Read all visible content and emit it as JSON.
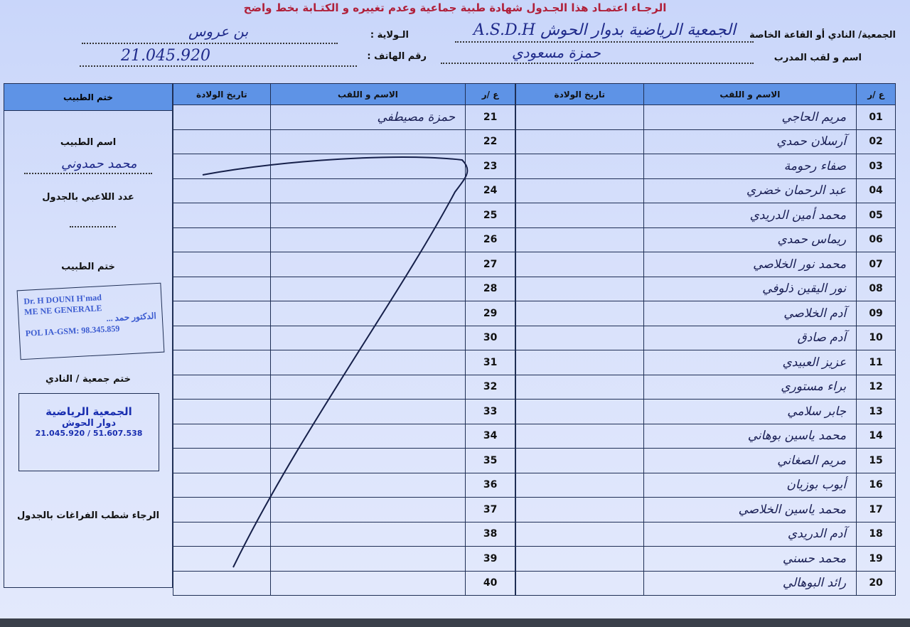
{
  "title": {
    "line1": "الرجـاء اعتمـاد هذا الجـدول  شهادة طبية جماعية وعدم تغييره و الكتـابة بخط واضح",
    "line2": ""
  },
  "header": {
    "club_label": "الجمعية/ النادي أو القاعة الخاصة",
    "club_value": "الجمعية الرياضية بدوار الحوش A.S.D.H",
    "wilaya_label": "الـولاية :",
    "wilaya_value": "بن عروس",
    "coach_label": "اسم و لقب المدرب",
    "coach_value": "حمزة مسعودي",
    "phone_label": "رقم الهاتف :",
    "phone_value": "21.045.920"
  },
  "table": {
    "col_number": "ع /ر",
    "col_name": "الاسم و اللقب",
    "col_birth": "تاريخ الولادة",
    "right_rows": [
      {
        "n": "01",
        "name": "مريم الحاجي"
      },
      {
        "n": "02",
        "name": "آرسلان حمدي"
      },
      {
        "n": "03",
        "name": "صفاء رحومة"
      },
      {
        "n": "04",
        "name": "عبد الرحمان خضري"
      },
      {
        "n": "05",
        "name": "محمد أمين الدريدي"
      },
      {
        "n": "06",
        "name": "ريماس حمدي"
      },
      {
        "n": "07",
        "name": "محمد نور الخلاصي"
      },
      {
        "n": "08",
        "name": "نور اليقين ذلوفي"
      },
      {
        "n": "09",
        "name": "آدم الخلاصي"
      },
      {
        "n": "10",
        "name": "آدم صادق"
      },
      {
        "n": "11",
        "name": "عزيز العبيدي"
      },
      {
        "n": "12",
        "name": "براء مستوري"
      },
      {
        "n": "13",
        "name": "جابر سلامي"
      },
      {
        "n": "14",
        "name": "محمد ياسين بوهاني"
      },
      {
        "n": "15",
        "name": "مريم الصغاني"
      },
      {
        "n": "16",
        "name": "أيوب بوزيان"
      },
      {
        "n": "17",
        "name": "محمد ياسين الخلاصي"
      },
      {
        "n": "18",
        "name": "آدم الدريدي"
      },
      {
        "n": "19",
        "name": "محمد حسني"
      },
      {
        "n": "20",
        "name": "رائد البوهالي"
      }
    ],
    "left_rows": [
      {
        "n": "21",
        "name": "حمزة مصيطفي"
      },
      {
        "n": "22",
        "name": ""
      },
      {
        "n": "23",
        "name": ""
      },
      {
        "n": "24",
        "name": ""
      },
      {
        "n": "25",
        "name": ""
      },
      {
        "n": "26",
        "name": ""
      },
      {
        "n": "27",
        "name": ""
      },
      {
        "n": "28",
        "name": ""
      },
      {
        "n": "29",
        "name": ""
      },
      {
        "n": "30",
        "name": ""
      },
      {
        "n": "31",
        "name": ""
      },
      {
        "n": "32",
        "name": ""
      },
      {
        "n": "33",
        "name": ""
      },
      {
        "n": "34",
        "name": ""
      },
      {
        "n": "35",
        "name": ""
      },
      {
        "n": "36",
        "name": ""
      },
      {
        "n": "37",
        "name": ""
      },
      {
        "n": "38",
        "name": ""
      },
      {
        "n": "39",
        "name": ""
      },
      {
        "n": "40",
        "name": ""
      }
    ]
  },
  "side": {
    "header": "ختم الطبيب",
    "doctor_name_label": "اسم الطبيب",
    "doctor_name_value": "محمد حمدوني",
    "players_count_label": "عدد اللاعبي بالجدول",
    "doctor_stamp_label": "ختم الطبيب",
    "doctor_stamp": {
      "line1": "Dr. H    DOUNI H'mad",
      "line2": "ME      NE GENERALE",
      "line3": "الدكتور حمد ...",
      "line4": "POL    IA-GSM: 98.345.859"
    },
    "club_stamp_label": "ختم جمعية / النادي",
    "club_stamp": {
      "line1": "الجمعية الرياضية",
      "line2": "دوار الحوش",
      "line3": "21.045.920 / 51.607.538"
    },
    "note": "الرجاء شطب  الفراغات بالجدول"
  },
  "colors": {
    "header_fill": "#5e93e6",
    "title_red": "#b0203a",
    "ink": "#1f2a8a",
    "paper": "#d7e0fb"
  }
}
